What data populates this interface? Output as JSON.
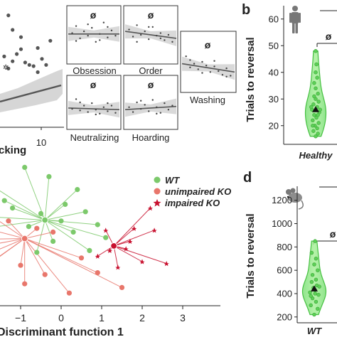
{
  "panel_letters": {
    "b": "b",
    "d": "d"
  },
  "chart_data": [
    {
      "id": "checking",
      "type": "scatter",
      "xlabel_fragment": "cking",
      "x_ticks": [
        10
      ],
      "marker_glyph": "✲",
      "points": [
        [
          2,
          9.2
        ],
        [
          3,
          8.0
        ],
        [
          5,
          7.4
        ],
        [
          5,
          6.4
        ],
        [
          6,
          5.3
        ],
        [
          8,
          5.0
        ],
        [
          9,
          6.5
        ],
        [
          10,
          5.6
        ],
        [
          11,
          5.1
        ],
        [
          12,
          7.1
        ],
        [
          1,
          5.8
        ],
        [
          3,
          5.4
        ],
        [
          7,
          5.1
        ],
        [
          9,
          4.5
        ],
        [
          4,
          6.0
        ],
        [
          2,
          4.8
        ]
      ],
      "regression": [
        [
          0,
          5.2
        ],
        [
          14,
          6.2
        ]
      ]
    },
    {
      "id": "obsession",
      "type": "scatter",
      "xlabel": "Obsession",
      "symbol": "ø",
      "points": [
        [
          1,
          3.2
        ],
        [
          2,
          4.0
        ],
        [
          3,
          2.6
        ],
        [
          4,
          3.4
        ],
        [
          5,
          2.9
        ],
        [
          6,
          3.8
        ],
        [
          7,
          2.2
        ],
        [
          8,
          3.1
        ],
        [
          9,
          4.4
        ],
        [
          10,
          2.7
        ],
        [
          11,
          3.5
        ],
        [
          12,
          2.9
        ],
        [
          2,
          2.3
        ],
        [
          5,
          4.2
        ],
        [
          8,
          2.4
        ],
        [
          10,
          3.9
        ]
      ],
      "regression": [
        [
          0,
          3.1
        ],
        [
          13,
          3.1
        ]
      ]
    },
    {
      "id": "order",
      "type": "scatter",
      "xlabel": "Order",
      "symbol": "ø",
      "points": [
        [
          1,
          3.6
        ],
        [
          2,
          2.8
        ],
        [
          3,
          4.1
        ],
        [
          4,
          3.0
        ],
        [
          5,
          3.4
        ],
        [
          6,
          2.5
        ],
        [
          7,
          3.9
        ],
        [
          8,
          2.9
        ],
        [
          9,
          3.2
        ],
        [
          10,
          2.4
        ],
        [
          11,
          3.0
        ],
        [
          12,
          2.2
        ],
        [
          3,
          2.2
        ],
        [
          6,
          3.9
        ],
        [
          9,
          2.6
        ]
      ],
      "regression": [
        [
          0,
          3.4
        ],
        [
          13,
          2.6
        ]
      ]
    },
    {
      "id": "washing",
      "type": "scatter",
      "xlabel": "Washing",
      "symbol": "ø",
      "points": [
        [
          1,
          3.6
        ],
        [
          2,
          3.2
        ],
        [
          3,
          2.8
        ],
        [
          4,
          2.2
        ],
        [
          5,
          3.0
        ],
        [
          6,
          2.6
        ],
        [
          7,
          1.9
        ],
        [
          8,
          2.5
        ],
        [
          9,
          2.0
        ],
        [
          10,
          1.6
        ],
        [
          11,
          2.3
        ],
        [
          12,
          1.5
        ],
        [
          2,
          2.4
        ],
        [
          5,
          1.8
        ],
        [
          8,
          3.1
        ],
        [
          11,
          1.4
        ]
      ],
      "regression": [
        [
          0,
          2.8
        ],
        [
          13,
          1.9
        ]
      ]
    },
    {
      "id": "neutralizing",
      "type": "scatter",
      "xlabel": "Neutralizing",
      "symbol": "ø",
      "points": [
        [
          1,
          2.2
        ],
        [
          2,
          3.4
        ],
        [
          3,
          2.0
        ],
        [
          4,
          2.6
        ],
        [
          5,
          1.8
        ],
        [
          6,
          2.9
        ],
        [
          7,
          2.1
        ],
        [
          8,
          1.6
        ],
        [
          9,
          2.4
        ],
        [
          10,
          1.9
        ],
        [
          11,
          2.6
        ],
        [
          12,
          1.7
        ],
        [
          3,
          3.0
        ],
        [
          7,
          1.5
        ],
        [
          10,
          2.9
        ]
      ],
      "regression": [
        [
          0,
          2.3
        ],
        [
          13,
          2.1
        ]
      ]
    },
    {
      "id": "hoarding",
      "type": "scatter",
      "xlabel": "Hoarding",
      "symbol": "ø",
      "points": [
        [
          1,
          2.4
        ],
        [
          2,
          1.8
        ],
        [
          3,
          3.0
        ],
        [
          4,
          2.2
        ],
        [
          5,
          2.7
        ],
        [
          6,
          1.9
        ],
        [
          7,
          3.3
        ],
        [
          8,
          2.4
        ],
        [
          9,
          1.7
        ],
        [
          10,
          2.9
        ],
        [
          11,
          2.1
        ],
        [
          12,
          2.6
        ],
        [
          4,
          3.2
        ],
        [
          8,
          1.6
        ]
      ],
      "regression": [
        [
          0,
          2.1
        ],
        [
          13,
          2.5
        ]
      ]
    },
    {
      "id": "lda",
      "type": "scatter",
      "xlabel": "Discriminant function 1",
      "xlim": [
        -2.6,
        3.2
      ],
      "x_ticks": [
        -1,
        0,
        1,
        2,
        3
      ],
      "legend": [
        "WT",
        "unimpaired KO",
        "impaired KO"
      ],
      "colors": {
        "WT": "#7cc96b",
        "unimpaired_KO": "#e8766b",
        "impaired_KO": "#c8102e"
      },
      "centroids": {
        "WT": [
          -0.4,
          1.25
        ],
        "unimpaired_KO": [
          -0.9,
          0.25
        ],
        "impaired_KO": [
          1.3,
          -0.15
        ]
      },
      "WT": [
        [
          -0.9,
          4.1
        ],
        [
          -0.3,
          3.6
        ],
        [
          0.4,
          2.9
        ],
        [
          -1.7,
          3.1
        ],
        [
          0.6,
          1.7
        ],
        [
          -1.2,
          1.9
        ],
        [
          0.1,
          2.1
        ],
        [
          -0.8,
          0.9
        ],
        [
          0.3,
          0.6
        ],
        [
          -1.9,
          0.8
        ],
        [
          0.9,
          1.0
        ],
        [
          -0.2,
          0.1
        ],
        [
          0.7,
          -0.4
        ],
        [
          -0.6,
          -0.5
        ],
        [
          1.1,
          0.3
        ],
        [
          -2.3,
          1.5
        ],
        [
          -1.4,
          2.3
        ],
        [
          0.0,
          1.2
        ],
        [
          -0.5,
          1.6
        ]
      ],
      "unimpaired_KO": [
        [
          -2.4,
          1.1
        ],
        [
          -2.1,
          0.2
        ],
        [
          -1.6,
          -0.4
        ],
        [
          -1.9,
          -1.3
        ],
        [
          -1.0,
          -1.2
        ],
        [
          -0.4,
          -1.7
        ],
        [
          0.2,
          -2.7
        ],
        [
          -1.3,
          1.2
        ],
        [
          -0.2,
          0.6
        ],
        [
          -2.5,
          -0.4
        ],
        [
          0.5,
          -0.8
        ],
        [
          -1.8,
          1.6
        ],
        [
          -0.9,
          -2.2
        ],
        [
          1.5,
          -2.4
        ],
        [
          0.9,
          -1.6
        ],
        [
          -2.2,
          -1.8
        ],
        [
          -0.6,
          0.8
        ]
      ],
      "impaired_KO": [
        [
          2.2,
          1.9
        ],
        [
          2.3,
          0.7
        ],
        [
          1.8,
          0.8
        ],
        [
          1.1,
          0.7
        ],
        [
          2.6,
          -1.1
        ],
        [
          2.0,
          -1.0
        ],
        [
          0.9,
          -0.7
        ],
        [
          1.6,
          -0.3
        ],
        [
          1.4,
          -1.3
        ],
        [
          1.2,
          -0.4
        ],
        [
          1.7,
          0.1
        ]
      ]
    },
    {
      "id": "healthy",
      "type": "violin",
      "ylabel": "Trials to reversal",
      "category": "Healthy",
      "ylim": [
        13,
        65
      ],
      "y_ticks": [
        20,
        30,
        40,
        50,
        60
      ],
      "significance": "ø",
      "mean": 26,
      "points": [
        [
          0,
          16
        ],
        [
          0.3,
          17
        ],
        [
          -0.3,
          18
        ],
        [
          0.2,
          19
        ],
        [
          -0.1,
          20
        ],
        [
          0.4,
          21
        ],
        [
          -0.4,
          22
        ],
        [
          0.1,
          23
        ],
        [
          -0.2,
          24
        ],
        [
          0.5,
          25
        ],
        [
          -0.5,
          26
        ],
        [
          0.2,
          27
        ],
        [
          -0.3,
          28
        ],
        [
          0.4,
          29
        ],
        [
          0,
          30
        ],
        [
          -0.2,
          31
        ],
        [
          0.3,
          32
        ],
        [
          0,
          34
        ],
        [
          -0.2,
          36
        ],
        [
          0.2,
          38
        ],
        [
          0,
          40
        ],
        [
          0.1,
          43
        ],
        [
          0,
          48
        ],
        [
          0.3,
          24
        ],
        [
          -0.4,
          20
        ],
        [
          0.6,
          26
        ],
        [
          -0.6,
          27
        ]
      ]
    },
    {
      "id": "mouse",
      "type": "violin",
      "ylabel": "Trials to reversal",
      "category": "WT",
      "ylim": [
        150,
        1320
      ],
      "y_ticks": [
        200,
        400,
        600,
        800,
        1000,
        1200
      ],
      "significance": "ø",
      "mean": 440,
      "points": [
        [
          0,
          220
        ],
        [
          0.4,
          270
        ],
        [
          -0.4,
          300
        ],
        [
          0.2,
          330
        ],
        [
          -0.2,
          360
        ],
        [
          0.5,
          390
        ],
        [
          -0.5,
          410
        ],
        [
          0.1,
          430
        ],
        [
          -0.1,
          450
        ],
        [
          0.3,
          470
        ],
        [
          -0.3,
          500
        ],
        [
          0.2,
          520
        ],
        [
          -0.2,
          560
        ],
        [
          0.4,
          600
        ],
        [
          0,
          650
        ],
        [
          0.2,
          700
        ],
        [
          -0.3,
          750
        ],
        [
          0.1,
          850
        ],
        [
          0.1,
          400
        ],
        [
          -0.4,
          380
        ],
        [
          0.6,
          460
        ]
      ]
    }
  ]
}
